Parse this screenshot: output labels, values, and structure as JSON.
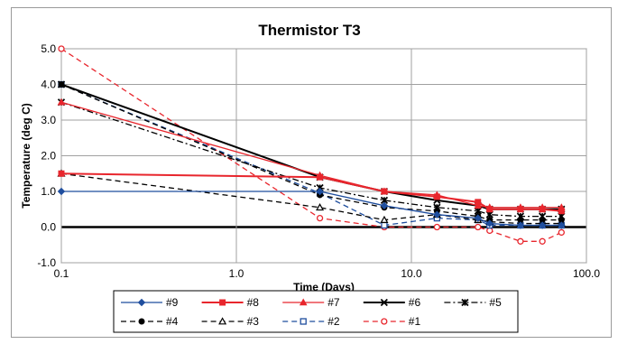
{
  "chart_data": {
    "type": "line",
    "title": "Thermistor T3",
    "xlabel": "Time (Days)",
    "ylabel": "Temperature (deg C)",
    "x_scale": "log",
    "xlim": [
      0.1,
      100
    ],
    "ylim": [
      -1,
      5
    ],
    "x_ticks": [
      0.1,
      1,
      10,
      100
    ],
    "x_tick_labels": [
      "0.1",
      "1.0",
      "10.0",
      "100.0"
    ],
    "y_ticks": [
      -1,
      0,
      1,
      2,
      3,
      4,
      5
    ],
    "y_tick_labels": [
      "-1.0",
      "0.0",
      "1.0",
      "2.0",
      "3.0",
      "4.0",
      "5.0"
    ],
    "grid": true,
    "legend_position": "bottom",
    "series": [
      {
        "name": "#9",
        "color": "#1f4e9e",
        "dash": "solid",
        "marker": "diamond",
        "x": [
          0.1,
          3,
          7,
          14,
          24,
          28,
          42,
          56,
          72
        ],
        "y": [
          1.0,
          1.0,
          0.6,
          0.35,
          0.25,
          0.1,
          0.05,
          0.05,
          0.05
        ]
      },
      {
        "name": "#8",
        "color": "#e8262d",
        "dash": "solid",
        "marker": "square",
        "x": [
          0.1,
          3,
          7,
          14,
          24,
          28,
          42,
          56,
          72
        ],
        "y": [
          1.5,
          1.4,
          1.0,
          0.85,
          0.7,
          0.5,
          0.5,
          0.5,
          0.45
        ]
      },
      {
        "name": "#7",
        "color": "#e8262d",
        "dash": "solid",
        "marker": "triangle",
        "x": [
          0.1,
          3,
          7,
          14,
          24,
          28,
          42,
          56,
          72
        ],
        "y": [
          3.5,
          1.45,
          1.0,
          0.9,
          0.6,
          0.55,
          0.55,
          0.55,
          0.55
        ]
      },
      {
        "name": "#6",
        "color": "#000000",
        "dash": "solid",
        "marker": "cross",
        "x": [
          0.1,
          3,
          7,
          14,
          24,
          28,
          42,
          56,
          72
        ],
        "y": [
          4.0,
          1.4,
          1.0,
          0.75,
          0.6,
          0.5,
          0.5,
          0.5,
          0.5
        ]
      },
      {
        "name": "#5",
        "color": "#000000",
        "dash": "dashdot",
        "marker": "star",
        "x": [
          0.1,
          3,
          7,
          14,
          24,
          28,
          42,
          56,
          72
        ],
        "y": [
          3.5,
          1.1,
          0.75,
          0.55,
          0.45,
          0.35,
          0.3,
          0.3,
          0.3
        ]
      },
      {
        "name": "#4",
        "color": "#000000",
        "dash": "dash",
        "marker": "circle",
        "x": [
          0.1,
          3,
          7,
          14,
          24,
          28,
          42,
          56,
          72
        ],
        "y": [
          4.0,
          0.9,
          0.55,
          0.45,
          0.3,
          0.2,
          0.2,
          0.2,
          0.2
        ]
      },
      {
        "name": "#3",
        "color": "#000000",
        "dash": "dash",
        "marker": "open-triangle",
        "x": [
          0.1,
          3,
          7,
          14,
          24,
          28,
          42,
          56,
          72
        ],
        "y": [
          1.5,
          0.55,
          0.2,
          0.35,
          0.2,
          0.15,
          0.1,
          0.1,
          0.1
        ]
      },
      {
        "name": "#2",
        "color": "#1f4e9e",
        "dash": "dash",
        "marker": "open-square",
        "x": [
          0.1,
          3,
          7,
          14,
          24,
          28,
          42,
          56,
          72
        ],
        "y": [
          4.0,
          0.95,
          0.05,
          0.25,
          0.2,
          0.05,
          0.05,
          0.05,
          0.05
        ]
      },
      {
        "name": "#1",
        "color": "#e8262d",
        "dash": "dash",
        "marker": "open-circle",
        "x": [
          0.1,
          3,
          7,
          14,
          24,
          28,
          42,
          56,
          72
        ],
        "y": [
          5.0,
          0.25,
          0.0,
          0.0,
          0.0,
          -0.1,
          -0.4,
          -0.4,
          -0.15
        ]
      }
    ]
  }
}
